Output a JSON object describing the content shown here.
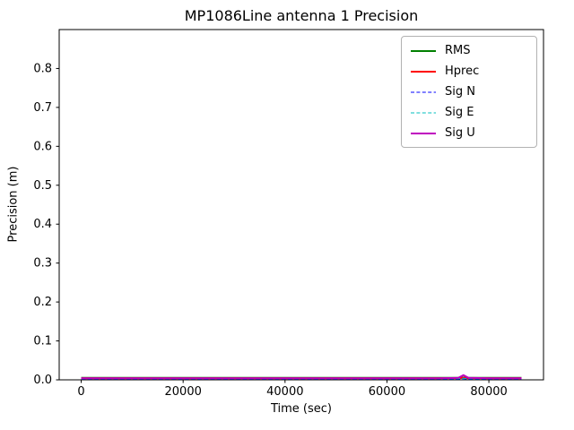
{
  "chart_data": {
    "type": "line",
    "title": "MP1086Line antenna 1 Precision",
    "xlabel": "Time (sec)",
    "ylabel": "Precision (m)",
    "xlim": [
      -4320,
      90720
    ],
    "ylim": [
      0,
      0.9
    ],
    "xticks": [
      0,
      20000,
      40000,
      60000,
      80000
    ],
    "yticks": [
      0.0,
      0.1,
      0.2,
      0.3,
      0.4,
      0.5,
      0.6,
      0.7,
      0.8
    ],
    "grid": false,
    "legend_position": "upper right",
    "axis_color": "#000000",
    "background_color": "#ffffff",
    "x_data_range_sec": [
      0,
      86400
    ],
    "series": [
      {
        "name": "RMS",
        "color": "#008000",
        "style": "solid",
        "lw": 2,
        "x": [
          0,
          10000,
          20000,
          30000,
          40000,
          50000,
          60000,
          70000,
          74000,
          75000,
          76000,
          80000,
          86400
        ],
        "y": [
          0.005,
          0.005,
          0.005,
          0.005,
          0.005,
          0.005,
          0.005,
          0.005,
          0.005,
          0.006,
          0.005,
          0.005,
          0.005
        ]
      },
      {
        "name": "Hprec",
        "color": "#ff0000",
        "style": "solid",
        "lw": 2,
        "x": [
          0,
          10000,
          20000,
          30000,
          40000,
          50000,
          60000,
          70000,
          74000,
          75000,
          76000,
          80000,
          86400
        ],
        "y": [
          0.004,
          0.004,
          0.004,
          0.004,
          0.004,
          0.004,
          0.004,
          0.004,
          0.004,
          0.005,
          0.004,
          0.004,
          0.004
        ]
      },
      {
        "name": "Sig N",
        "color": "#0000ff",
        "style": "dashed",
        "lw": 1,
        "x": [
          0,
          10000,
          20000,
          30000,
          40000,
          50000,
          60000,
          70000,
          74000,
          75000,
          76000,
          80000,
          86400
        ],
        "y": [
          0.002,
          0.002,
          0.002,
          0.002,
          0.002,
          0.002,
          0.002,
          0.002,
          0.002,
          0.003,
          0.002,
          0.002,
          0.002
        ]
      },
      {
        "name": "Sig E",
        "color": "#00bfbf",
        "style": "dashed",
        "lw": 1,
        "x": [
          0,
          10000,
          20000,
          30000,
          40000,
          50000,
          60000,
          70000,
          74000,
          75000,
          76000,
          80000,
          86400
        ],
        "y": [
          0.003,
          0.003,
          0.003,
          0.003,
          0.003,
          0.003,
          0.003,
          0.003,
          0.003,
          0.004,
          0.003,
          0.003,
          0.003
        ]
      },
      {
        "name": "Sig U",
        "color": "#bf00bf",
        "style": "solid",
        "lw": 2,
        "x": [
          0,
          10000,
          20000,
          30000,
          40000,
          50000,
          60000,
          70000,
          74000,
          75000,
          76000,
          80000,
          86400
        ],
        "y": [
          0.004,
          0.004,
          0.004,
          0.004,
          0.004,
          0.004,
          0.004,
          0.004,
          0.005,
          0.012,
          0.005,
          0.004,
          0.004
        ]
      }
    ]
  }
}
